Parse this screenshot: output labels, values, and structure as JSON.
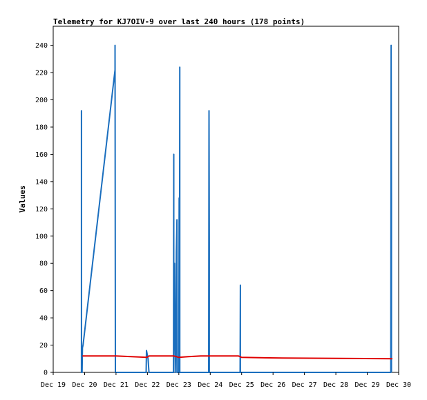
{
  "chart_data": {
    "type": "line",
    "title": "Telemetry for KJ7OIV-9 over last 240 hours (178 points)",
    "xlabel": "",
    "ylabel": "Values",
    "xlim": [
      0,
      11
    ],
    "ylim": [
      0,
      254
    ],
    "x_tick_labels": [
      "Dec 19",
      "Dec 20",
      "Dec 21",
      "Dec 22",
      "Dec 23",
      "Dec 24",
      "Dec 25",
      "Dec 26",
      "Dec 27",
      "Dec 28",
      "Dec 29",
      "Dec 30"
    ],
    "y_ticks": [
      0,
      20,
      40,
      60,
      80,
      100,
      120,
      140,
      160,
      180,
      200,
      220,
      240
    ],
    "grid": false,
    "series": [
      {
        "color": "#1a6ebe",
        "points": [
          [
            0.9,
            0
          ],
          [
            0.9,
            192
          ],
          [
            0.9,
            0
          ],
          [
            0.92,
            0
          ],
          [
            0.93,
            18
          ],
          [
            0.95,
            20
          ],
          [
            1.97,
            222
          ],
          [
            1.97,
            240
          ],
          [
            1.98,
            0
          ],
          [
            1.99,
            0
          ],
          [
            2.96,
            0
          ],
          [
            2.97,
            16
          ],
          [
            3.02,
            10
          ],
          [
            3.05,
            0
          ],
          [
            3.83,
            0
          ],
          [
            3.84,
            160
          ],
          [
            3.84,
            0
          ],
          [
            3.86,
            80
          ],
          [
            3.87,
            40
          ],
          [
            3.9,
            0
          ],
          [
            3.92,
            88
          ],
          [
            3.94,
            112
          ],
          [
            3.95,
            0
          ],
          [
            4.0,
            0
          ],
          [
            4.01,
            128
          ],
          [
            4.02,
            0
          ],
          [
            4.03,
            224
          ],
          [
            4.03,
            0
          ],
          [
            4.95,
            0
          ],
          [
            4.96,
            192
          ],
          [
            4.97,
            96
          ],
          [
            4.97,
            0
          ],
          [
            5.95,
            0
          ],
          [
            5.96,
            64
          ],
          [
            5.96,
            0
          ],
          [
            10.75,
            0
          ],
          [
            10.76,
            240
          ],
          [
            10.77,
            128
          ],
          [
            10.77,
            0
          ]
        ]
      },
      {
        "color": "#e00000",
        "points": [
          [
            0.93,
            12
          ],
          [
            2.0,
            12
          ],
          [
            2.98,
            11
          ],
          [
            3.05,
            12
          ],
          [
            3.85,
            12
          ],
          [
            4.0,
            11
          ],
          [
            4.3,
            11.5
          ],
          [
            4.7,
            12
          ],
          [
            5.9,
            12
          ],
          [
            6.0,
            11
          ],
          [
            7.3,
            10.5
          ],
          [
            9.5,
            10.2
          ],
          [
            10.8,
            10
          ]
        ]
      }
    ]
  }
}
